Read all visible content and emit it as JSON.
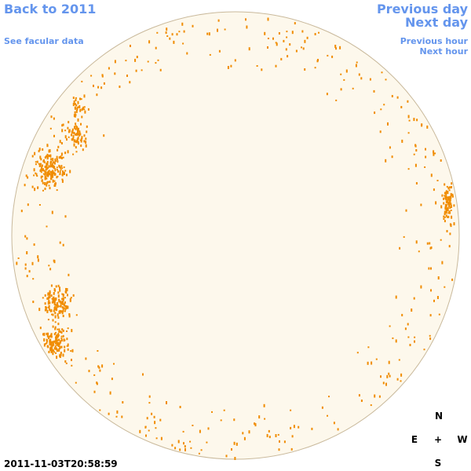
{
  "nav": {
    "back": "Back to 2011",
    "see_facular": "See facular data",
    "previous_day": "Previous day",
    "next_day": "Next day",
    "previous_hour": "Previous hour",
    "next_hour": "Next hour"
  },
  "timestamp": "2011-11-03T20:58:59",
  "compass": {
    "north": "N",
    "east": "E",
    "center": "+",
    "west": "W",
    "south": "S"
  }
}
